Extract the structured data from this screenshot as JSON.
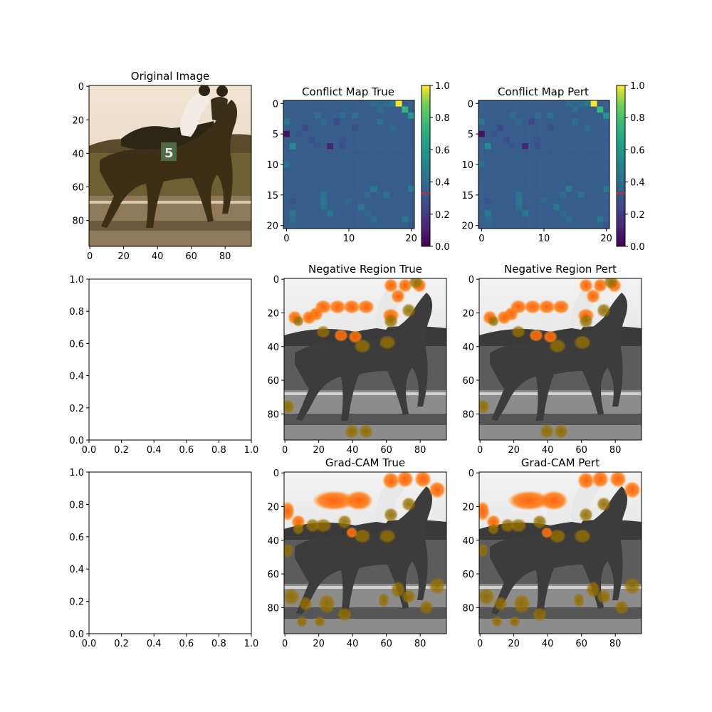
{
  "figure": {
    "background": "#ffffff"
  },
  "chart_data": [
    {
      "id": "original",
      "type": "image",
      "title": "Original Image",
      "xlim": [
        0,
        96
      ],
      "ylim": [
        96,
        0
      ],
      "xticks": [
        0,
        20,
        40,
        60,
        80
      ],
      "yticks": [
        0,
        20,
        40,
        60,
        80
      ],
      "content": "photo of horse and jockey on dirt track, sepia tones"
    },
    {
      "id": "conflict_true",
      "type": "heatmap",
      "title": "Conflict Map True",
      "grid_size": 21,
      "xticks": [
        0,
        10,
        20
      ],
      "yticks": [
        0,
        5,
        10,
        15,
        20
      ],
      "colormap": "viridis",
      "colorbar": {
        "range": [
          0,
          1
        ],
        "ticks": [
          "0.0",
          "0.2",
          "0.4",
          "0.6",
          "0.8",
          "1.0"
        ],
        "marker_value": 0.33,
        "marker_color": "#d62728"
      },
      "background_value": 0.33,
      "cells": [
        [
          0,
          18,
          1.0
        ],
        [
          0,
          17,
          0.45
        ],
        [
          0,
          16,
          0.4
        ],
        [
          0,
          14,
          0.4
        ],
        [
          0,
          15,
          0.38
        ],
        [
          1,
          19,
          0.75
        ],
        [
          1,
          15,
          0.4
        ],
        [
          2,
          20,
          0.6
        ],
        [
          2,
          11,
          0.42
        ],
        [
          2,
          5,
          0.4
        ],
        [
          2,
          9,
          0.4
        ],
        [
          3,
          0,
          0.45
        ],
        [
          3,
          6,
          0.4
        ],
        [
          3,
          8,
          0.25
        ],
        [
          3,
          15,
          0.42
        ],
        [
          4,
          3,
          0.25
        ],
        [
          4,
          11,
          0.28
        ],
        [
          4,
          17,
          0.4
        ],
        [
          5,
          0,
          0.05
        ],
        [
          5,
          2,
          0.3
        ],
        [
          6,
          4,
          0.28
        ],
        [
          6,
          9,
          0.3
        ],
        [
          7,
          1,
          0.55
        ],
        [
          7,
          7,
          0.12
        ],
        [
          7,
          9,
          0.28
        ],
        [
          7,
          5,
          0.3
        ],
        [
          8,
          11,
          0.32
        ],
        [
          10,
          0,
          0.42
        ],
        [
          14,
          14,
          0.45
        ],
        [
          14,
          20,
          0.45
        ],
        [
          15,
          6,
          0.42
        ],
        [
          15,
          13,
          0.4
        ],
        [
          15,
          16,
          0.42
        ],
        [
          16,
          1,
          0.28
        ],
        [
          16,
          6,
          0.45
        ],
        [
          16,
          10,
          0.38
        ],
        [
          17,
          6,
          0.42
        ],
        [
          17,
          12,
          0.45
        ],
        [
          18,
          1,
          0.45
        ],
        [
          18,
          7,
          0.45
        ],
        [
          18,
          13,
          0.38
        ],
        [
          19,
          1,
          0.4
        ],
        [
          19,
          14,
          0.4
        ],
        [
          19,
          19,
          0.45
        ],
        [
          20,
          1,
          0.35
        ],
        [
          20,
          20,
          0.3
        ]
      ]
    },
    {
      "id": "conflict_pert",
      "type": "heatmap",
      "title": "Conflict Map Pert",
      "grid_size": 21,
      "xticks": [
        0,
        10,
        20
      ],
      "yticks": [
        0,
        5,
        10,
        15,
        20
      ],
      "colormap": "viridis",
      "colorbar": {
        "range": [
          0,
          1
        ],
        "ticks": [
          "0.0",
          "0.2",
          "0.4",
          "0.6",
          "0.8",
          "1.0"
        ],
        "marker_value": 0.33,
        "marker_color": "#d62728"
      },
      "background_value": 0.33,
      "cells": [
        [
          0,
          18,
          1.0
        ],
        [
          0,
          17,
          0.45
        ],
        [
          0,
          16,
          0.4
        ],
        [
          0,
          14,
          0.4
        ],
        [
          0,
          15,
          0.38
        ],
        [
          1,
          19,
          0.75
        ],
        [
          1,
          15,
          0.4
        ],
        [
          2,
          20,
          0.6
        ],
        [
          2,
          11,
          0.42
        ],
        [
          2,
          5,
          0.4
        ],
        [
          2,
          9,
          0.4
        ],
        [
          3,
          0,
          0.45
        ],
        [
          3,
          6,
          0.4
        ],
        [
          3,
          8,
          0.25
        ],
        [
          3,
          15,
          0.42
        ],
        [
          4,
          3,
          0.25
        ],
        [
          4,
          11,
          0.28
        ],
        [
          4,
          17,
          0.4
        ],
        [
          5,
          0,
          0.05
        ],
        [
          5,
          2,
          0.3
        ],
        [
          6,
          4,
          0.28
        ],
        [
          6,
          9,
          0.3
        ],
        [
          7,
          1,
          0.55
        ],
        [
          7,
          7,
          0.12
        ],
        [
          7,
          9,
          0.28
        ],
        [
          7,
          5,
          0.3
        ],
        [
          8,
          11,
          0.32
        ],
        [
          10,
          0,
          0.42
        ],
        [
          14,
          14,
          0.45
        ],
        [
          14,
          20,
          0.45
        ],
        [
          15,
          6,
          0.42
        ],
        [
          15,
          13,
          0.4
        ],
        [
          15,
          16,
          0.42
        ],
        [
          16,
          1,
          0.28
        ],
        [
          16,
          6,
          0.45
        ],
        [
          16,
          10,
          0.38
        ],
        [
          17,
          6,
          0.42
        ],
        [
          17,
          12,
          0.45
        ],
        [
          18,
          1,
          0.45
        ],
        [
          18,
          7,
          0.45
        ],
        [
          18,
          13,
          0.38
        ],
        [
          19,
          1,
          0.4
        ],
        [
          19,
          14,
          0.4
        ],
        [
          19,
          19,
          0.45
        ],
        [
          20,
          1,
          0.35
        ],
        [
          20,
          20,
          0.3
        ]
      ]
    },
    {
      "id": "empty1",
      "type": "empty",
      "title": "",
      "xlim": [
        0,
        1
      ],
      "ylim": [
        0,
        1
      ],
      "xticks": [
        "0.0",
        "0.2",
        "0.4",
        "0.6",
        "0.8",
        "1.0"
      ],
      "yticks": [
        "0.0",
        "0.2",
        "0.4",
        "0.6",
        "0.8",
        "1.0"
      ]
    },
    {
      "id": "neg_true",
      "type": "image",
      "title": "Negative Region True",
      "xticks": [
        0,
        20,
        40,
        60,
        80
      ],
      "yticks": [
        0,
        20,
        40,
        60,
        80
      ],
      "content": "grayscale horse image with orange region highlights"
    },
    {
      "id": "neg_pert",
      "type": "image",
      "title": "Negative Region Pert",
      "xticks": [
        0,
        20,
        40,
        60,
        80
      ],
      "yticks": [
        0,
        20,
        40,
        60,
        80
      ],
      "content": "grayscale horse image with orange region highlights"
    },
    {
      "id": "empty2",
      "type": "empty",
      "title": "",
      "xlim": [
        0,
        1
      ],
      "ylim": [
        0,
        1
      ],
      "xticks": [
        "0.0",
        "0.2",
        "0.4",
        "0.6",
        "0.8",
        "1.0"
      ],
      "yticks": [
        "0.0",
        "0.2",
        "0.4",
        "0.6",
        "0.8",
        "1.0"
      ]
    },
    {
      "id": "grad_true",
      "type": "image",
      "title": "Grad-CAM True",
      "xticks": [
        0,
        20,
        40,
        60,
        80
      ],
      "yticks": [
        0,
        20,
        40,
        60,
        80
      ],
      "content": "grayscale horse image with orange Grad-CAM highlights"
    },
    {
      "id": "grad_pert",
      "type": "image",
      "title": "Grad-CAM Pert",
      "xticks": [
        0,
        20,
        40,
        60,
        80
      ],
      "yticks": [
        0,
        20,
        40,
        60,
        80
      ],
      "content": "grayscale horse image with orange Grad-CAM highlights"
    }
  ]
}
